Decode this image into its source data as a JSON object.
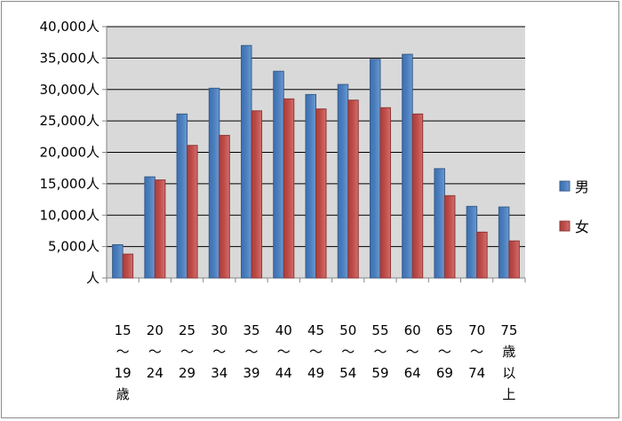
{
  "chart_data": {
    "type": "bar",
    "categories": [
      "15～19歳",
      "20～24",
      "25～29",
      "30～34",
      "35～39",
      "40～44",
      "45～49",
      "50～54",
      "55～59",
      "60～64",
      "65～69",
      "70～74",
      "75歳以上"
    ],
    "category_label_lines": [
      [
        "15",
        "～",
        "19",
        "歳"
      ],
      [
        "20",
        "～",
        "24"
      ],
      [
        "25",
        "～",
        "29"
      ],
      [
        "30",
        "～",
        "34"
      ],
      [
        "35",
        "～",
        "39"
      ],
      [
        "40",
        "～",
        "44"
      ],
      [
        "45",
        "～",
        "49"
      ],
      [
        "50",
        "～",
        "54"
      ],
      [
        "55",
        "～",
        "59"
      ],
      [
        "60",
        "～",
        "64"
      ],
      [
        "65",
        "～",
        "69"
      ],
      [
        "70",
        "～",
        "74"
      ],
      [
        "75",
        "歳",
        "以",
        "上"
      ]
    ],
    "series": [
      {
        "name": "男",
        "color": "#4a7ebb",
        "values": [
          5300,
          16100,
          26100,
          30200,
          37000,
          32900,
          29200,
          30800,
          34800,
          35600,
          17400,
          11400,
          11300
        ]
      },
      {
        "name": "女",
        "color": "#be4b48",
        "values": [
          3800,
          15600,
          21100,
          22700,
          26600,
          28500,
          26900,
          28300,
          27100,
          26100,
          13100,
          7300,
          5900
        ]
      }
    ],
    "ylim": [
      0,
      40000
    ],
    "yticks": [
      0,
      5000,
      10000,
      15000,
      20000,
      25000,
      30000,
      35000,
      40000
    ],
    "ytick_labels": [
      "人",
      "5,000人",
      "10,000人",
      "15,000人",
      "20,000人",
      "25,000人",
      "30,000人",
      "35,000人",
      "40,000人"
    ],
    "grid": true,
    "legend_position": "right"
  }
}
